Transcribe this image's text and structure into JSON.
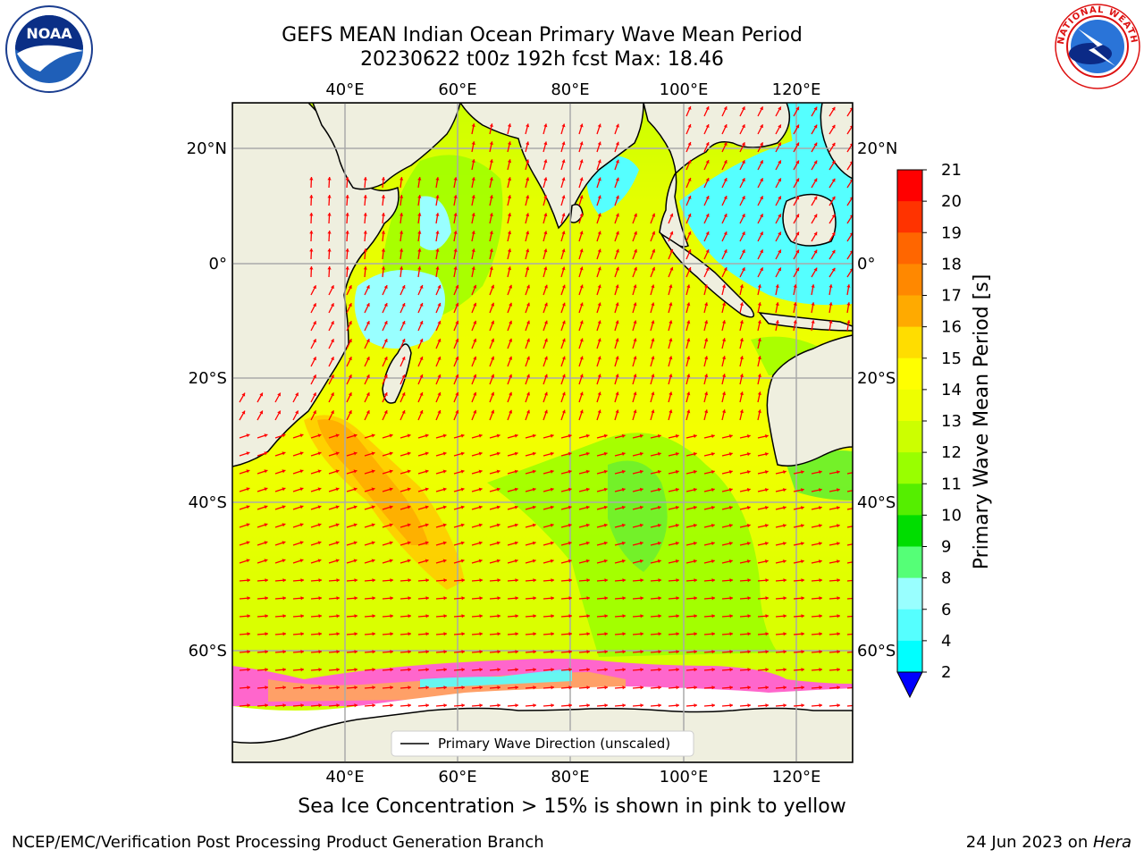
{
  "title": {
    "line1": "GEFS MEAN Indian Ocean Primary Wave Mean Period",
    "line2": "20230622 t00z 192h fcst   Max: 18.46"
  },
  "map": {
    "lon_labels": [
      "40°E",
      "60°E",
      "80°E",
      "100°E",
      "120°E"
    ],
    "lat_labels": [
      "20°N",
      "0°",
      "20°S",
      "40°S",
      "60°S"
    ],
    "legend_label": "Primary Wave Direction (unscaled)",
    "land_color": "#efefdf",
    "arrow_color": "#ff0000"
  },
  "colorbar": {
    "label": "Primary Wave Mean Period [s]",
    "ticks": [
      "21",
      "20",
      "19",
      "18",
      "17",
      "16",
      "15",
      "14",
      "13",
      "12",
      "11",
      "10",
      "9",
      "8",
      "6",
      "4",
      "2"
    ],
    "colors": [
      "#ff0000",
      "#ff3300",
      "#ff6600",
      "#ff8800",
      "#ffaa00",
      "#ffdd00",
      "#ffff00",
      "#eeff00",
      "#ccff00",
      "#99ff00",
      "#55ee00",
      "#00dd00",
      "#55ff77",
      "#99ffff",
      "#55ffff",
      "#00ffff",
      "#0088ff",
      "#0000ff"
    ]
  },
  "subtitle": "Sea Ice Concentration > 15% is shown in pink to yellow",
  "footer": {
    "left": "NCEP/EMC/Verification Post Processing Product Generation Branch",
    "right_date": "24 Jun 2023 on ",
    "right_host": "Hera"
  },
  "logos": {
    "noaa_text": "NOAA",
    "nws_ring_text": "NATIONAL WEATHER SERVICE"
  }
}
